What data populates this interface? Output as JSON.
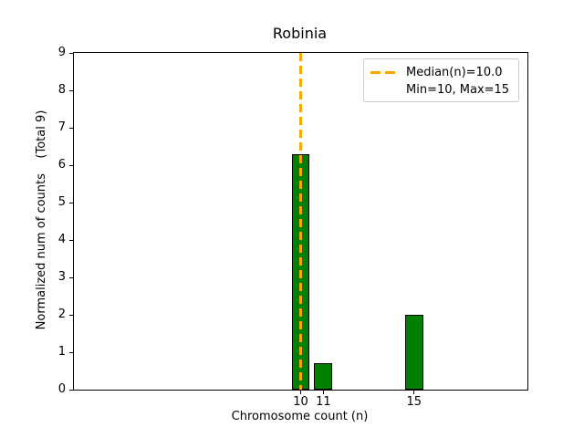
{
  "figure": {
    "title": "Robinia",
    "xlabel": "Chromosome count (n)",
    "ylabel": "Normalized num of counts    (Total 9)"
  },
  "legend": {
    "position": "upper right",
    "entries": [
      {
        "label": "Median(n)=10.0",
        "marker": "orange-dashed-line"
      },
      {
        "label": "Min=10, Max=15",
        "marker": "none"
      }
    ]
  },
  "chart_data": {
    "type": "bar",
    "title": "Robinia",
    "xlabel": "Chromosome count (n)",
    "ylabel": "Normalized num of counts    (Total 9)",
    "categories": [
      10,
      11,
      15
    ],
    "values": [
      6.3,
      0.7,
      2.0
    ],
    "total_counts": 9,
    "bar_color": "#008000",
    "bar_edge_color": "#000000",
    "bar_width_units": 0.8,
    "median_line": {
      "x": 10.0,
      "color": "#FFA500",
      "style": "dashed",
      "label": "Median(n)=10.0"
    },
    "min": 10,
    "max": 15,
    "xlim": [
      0,
      20
    ],
    "ylim": [
      0,
      9
    ],
    "xticks": [
      10,
      11,
      15
    ],
    "yticks": [
      0,
      1,
      2,
      3,
      4,
      5,
      6,
      7,
      8,
      9
    ],
    "grid": false,
    "legend_position": "upper right"
  }
}
